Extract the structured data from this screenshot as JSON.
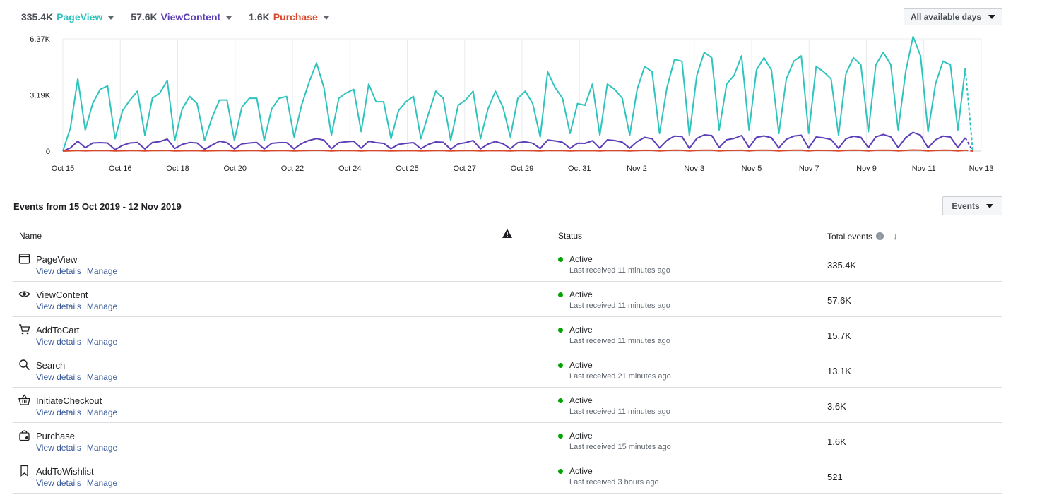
{
  "legend": [
    {
      "count": "335.4K",
      "label": "PageView",
      "color": "#2ec4bd"
    },
    {
      "count": "57.6K",
      "label": "ViewContent",
      "color": "#5c3db8"
    },
    {
      "count": "1.6K",
      "label": "Purchase",
      "color": "#d9482b"
    }
  ],
  "range_button": {
    "label": "All available days"
  },
  "chart_data": {
    "type": "line",
    "x_tick_labels": [
      "Oct 15",
      "Oct 16",
      "Oct 18",
      "Oct 20",
      "Oct 22",
      "Oct 24",
      "Oct 25",
      "Oct 27",
      "Oct 29",
      "Oct 31",
      "Nov 2",
      "Nov 3",
      "Nov 5",
      "Nov 7",
      "Nov 9",
      "Nov 11",
      "Nov 13"
    ],
    "y_tick_labels": [
      "0",
      "3.19K",
      "6.37K"
    ],
    "ylim": [
      0,
      6370
    ],
    "grid": true,
    "x_unit": "12-hour intervals from Oct 15",
    "series": [
      {
        "name": "PageView",
        "color": "#2ec4bd",
        "dashed_tail": true,
        "values": [
          0,
          1300,
          4100,
          1200,
          2700,
          3500,
          3700,
          700,
          2300,
          2900,
          3400,
          900,
          3000,
          3300,
          4000,
          600,
          2400,
          3100,
          2700,
          600,
          1900,
          2900,
          2900,
          600,
          2500,
          3000,
          3000,
          600,
          2400,
          3000,
          3100,
          800,
          2600,
          3900,
          5000,
          3600,
          900,
          3000,
          3300,
          3500,
          1100,
          3800,
          2800,
          2800,
          700,
          2300,
          2800,
          3100,
          700,
          2100,
          3400,
          3000,
          600,
          2600,
          2900,
          3400,
          700,
          2400,
          3400,
          2500,
          800,
          3000,
          3400,
          2700,
          800,
          4500,
          3600,
          3000,
          1000,
          2700,
          2600,
          3800,
          900,
          3800,
          3500,
          3000,
          900,
          3500,
          4800,
          4500,
          1000,
          3600,
          5200,
          5100,
          900,
          4300,
          5600,
          5300,
          1200,
          3800,
          4300,
          5400,
          1200,
          4600,
          5300,
          4600,
          1000,
          4100,
          5100,
          5400,
          1000,
          4800,
          4500,
          4100,
          900,
          4400,
          5300,
          4900,
          1100,
          4900,
          5600,
          4900,
          1200,
          4500,
          6500,
          5400,
          1100,
          3800,
          5100,
          4900,
          1200,
          4700,
          0
        ]
      },
      {
        "name": "ViewContent",
        "color": "#5c3db8",
        "dashed_tail": true,
        "values": [
          0,
          180,
          560,
          190,
          460,
          480,
          460,
          80,
          330,
          460,
          490,
          120,
          490,
          540,
          680,
          150,
          380,
          490,
          460,
          100,
          340,
          560,
          480,
          120,
          410,
          460,
          490,
          120,
          440,
          480,
          480,
          130,
          430,
          610,
          710,
          630,
          140,
          480,
          530,
          560,
          170,
          560,
          480,
          440,
          140,
          380,
          440,
          480,
          140,
          380,
          520,
          500,
          110,
          410,
          480,
          600,
          130,
          400,
          540,
          420,
          140,
          480,
          530,
          450,
          150,
          630,
          580,
          500,
          160,
          450,
          440,
          590,
          170,
          640,
          600,
          510,
          170,
          540,
          780,
          700,
          180,
          610,
          850,
          830,
          160,
          720,
          920,
          880,
          200,
          640,
          720,
          880,
          210,
          780,
          860,
          760,
          180,
          670,
          850,
          900,
          180,
          800,
          750,
          660,
          160,
          700,
          840,
          780,
          200,
          810,
          940,
          810,
          200,
          760,
          1060,
          900,
          190,
          640,
          850,
          800,
          200,
          760,
          0
        ]
      },
      {
        "name": "Purchase",
        "color": "#d9482b",
        "dashed_tail": true,
        "values": [
          0,
          15,
          35,
          15,
          28,
          30,
          32,
          8,
          20,
          28,
          30,
          10,
          30,
          32,
          40,
          10,
          22,
          28,
          26,
          8,
          20,
          32,
          28,
          8,
          24,
          28,
          28,
          8,
          26,
          28,
          30,
          8,
          26,
          36,
          42,
          36,
          10,
          28,
          30,
          32,
          10,
          32,
          28,
          26,
          8,
          22,
          26,
          28,
          8,
          22,
          30,
          28,
          8,
          24,
          28,
          34,
          8,
          24,
          32,
          24,
          8,
          28,
          32,
          26,
          8,
          36,
          34,
          30,
          10,
          26,
          26,
          34,
          10,
          36,
          34,
          30,
          10,
          32,
          44,
          40,
          10,
          36,
          48,
          46,
          10,
          40,
          52,
          50,
          12,
          36,
          40,
          50,
          12,
          44,
          48,
          44,
          10,
          38,
          48,
          50,
          10,
          46,
          42,
          38,
          10,
          40,
          48,
          44,
          12,
          46,
          52,
          46,
          12,
          42,
          60,
          50,
          10,
          36,
          48,
          46,
          12,
          44,
          0
        ]
      }
    ]
  },
  "events_header": {
    "title": "Events from 15 Oct 2019 - 12 Nov 2019",
    "button_label": "Events"
  },
  "table": {
    "columns": {
      "name": "Name",
      "status": "Status",
      "total": "Total events",
      "info_icon": "i",
      "sort_icon": "↓",
      "warning_icon": "⚠"
    },
    "link_view": "View details",
    "link_manage": "Manage",
    "rows": [
      {
        "icon": "browser-window-icon",
        "name": "PageView",
        "status": "Active",
        "last": "Last received 11 minutes ago",
        "total": "335.4K"
      },
      {
        "icon": "eye-icon",
        "name": "ViewContent",
        "status": "Active",
        "last": "Last received 11 minutes ago",
        "total": "57.6K"
      },
      {
        "icon": "shopping-cart-icon",
        "name": "AddToCart",
        "status": "Active",
        "last": "Last received 11 minutes ago",
        "total": "15.7K"
      },
      {
        "icon": "magnifier-icon",
        "name": "Search",
        "status": "Active",
        "last": "Last received 21 minutes ago",
        "total": "13.1K"
      },
      {
        "icon": "basket-icon",
        "name": "InitiateCheckout",
        "status": "Active",
        "last": "Last received 11 minutes ago",
        "total": "3.6K"
      },
      {
        "icon": "shopping-bag-icon",
        "name": "Purchase",
        "status": "Active",
        "last": "Last received 15 minutes ago",
        "total": "1.6K"
      },
      {
        "icon": "bookmark-icon",
        "name": "AddToWishlist",
        "status": "Active",
        "last": "Last received 3 hours ago",
        "total": "521"
      }
    ]
  }
}
